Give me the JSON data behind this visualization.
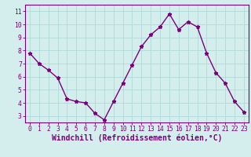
{
  "x": [
    0,
    1,
    2,
    3,
    4,
    5,
    6,
    7,
    8,
    9,
    10,
    11,
    12,
    13,
    14,
    15,
    16,
    17,
    18,
    19,
    20,
    21,
    22,
    23
  ],
  "y": [
    7.8,
    7.0,
    6.5,
    5.9,
    4.3,
    4.1,
    4.0,
    3.2,
    2.7,
    4.1,
    5.5,
    6.9,
    8.3,
    9.2,
    9.8,
    10.8,
    9.6,
    10.2,
    9.8,
    7.8,
    6.3,
    5.5,
    4.1,
    3.3
  ],
  "line_color": "#7b007b",
  "marker": "*",
  "marker_size": 3.5,
  "bg_color": "#d4eeee",
  "grid_color": "#b0d8d8",
  "xlabel": "Windchill (Refroidissement éolien,°C)",
  "xlim": [
    -0.5,
    23.5
  ],
  "ylim": [
    2.5,
    11.5
  ],
  "yticks": [
    3,
    4,
    5,
    6,
    7,
    8,
    9,
    10,
    11
  ],
  "xticks": [
    0,
    1,
    2,
    3,
    4,
    5,
    6,
    7,
    8,
    9,
    10,
    11,
    12,
    13,
    14,
    15,
    16,
    17,
    18,
    19,
    20,
    21,
    22,
    23
  ],
  "tick_label_fontsize": 5.8,
  "xlabel_fontsize": 7.0,
  "spine_color": "#7b007b",
  "line_width": 1.0
}
